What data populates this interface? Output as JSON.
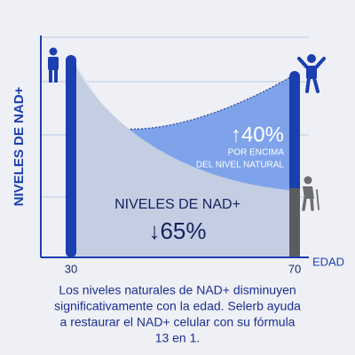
{
  "y_axis_label": "NIVELES DE NAD+",
  "x_axis_label": "EDAD",
  "x_labels": [
    30,
    70
  ],
  "boost": {
    "value": "↑40%",
    "lines": [
      "POR ENCIMA",
      "DEL NIVEL NATURAL"
    ]
  },
  "decline": {
    "label": "NIVELES DE NAD+",
    "value": "↓65%"
  },
  "caption": [
    "Los niveles naturales de NAD+ disminuyen",
    "significativamente con la edad. Selerb ayuda",
    "a restaurar el NAD+ celular con su fórmula",
    "13 en 1."
  ]
}
